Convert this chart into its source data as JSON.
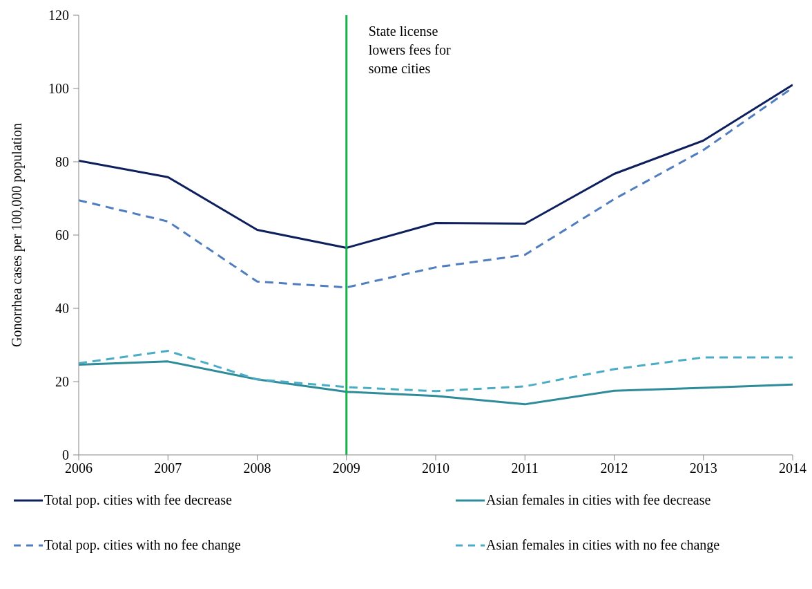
{
  "chart_data": {
    "type": "line",
    "ylabel": "Gonorrhea cases per 100,000 population",
    "x": [
      2006,
      2007,
      2008,
      2009,
      2010,
      2011,
      2012,
      2013,
      2014
    ],
    "xlim": [
      2006,
      2014
    ],
    "xticks": [
      2006,
      2007,
      2008,
      2009,
      2010,
      2011,
      2012,
      2013,
      2014
    ],
    "ylim": [
      0,
      120
    ],
    "yticks": [
      0,
      20,
      40,
      60,
      80,
      100,
      120
    ],
    "grid": false,
    "legend": "bottom",
    "marker": "none",
    "series": [
      {
        "name": "Total pop. cities with fee decrease",
        "color": "#0d1f5c",
        "line_style": "solid",
        "values": [
          80.3,
          75.8,
          61.4,
          56.5,
          63.3,
          63.1,
          76.7,
          85.8,
          101
        ]
      },
      {
        "name": "Asian females in cities with fee decrease",
        "color": "#2e8b9a",
        "line_style": "solid",
        "values": [
          24.6,
          25.5,
          20.6,
          17.2,
          16.1,
          13.8,
          17.5,
          18.3,
          19.2
        ]
      },
      {
        "name": "Total pop. cities with no fee change",
        "color": "#4f7dbf",
        "line_style": "dashed",
        "values": [
          69.5,
          63.7,
          47.3,
          45.7,
          51.2,
          54.6,
          69.8,
          83.2,
          100.2
        ]
      },
      {
        "name": "Asian females in cities with no fee change",
        "color": "#4bacc6",
        "line_style": "dashed",
        "values": [
          25,
          28.4,
          20.6,
          18.5,
          17.4,
          18.7,
          23.4,
          26.6,
          26.6
        ]
      }
    ],
    "ref_lines": [
      {
        "axis": "x",
        "value": 2009,
        "label": "State license lowers fees for some cities",
        "color": "#17b04a",
        "line_style": "solid"
      }
    ]
  }
}
